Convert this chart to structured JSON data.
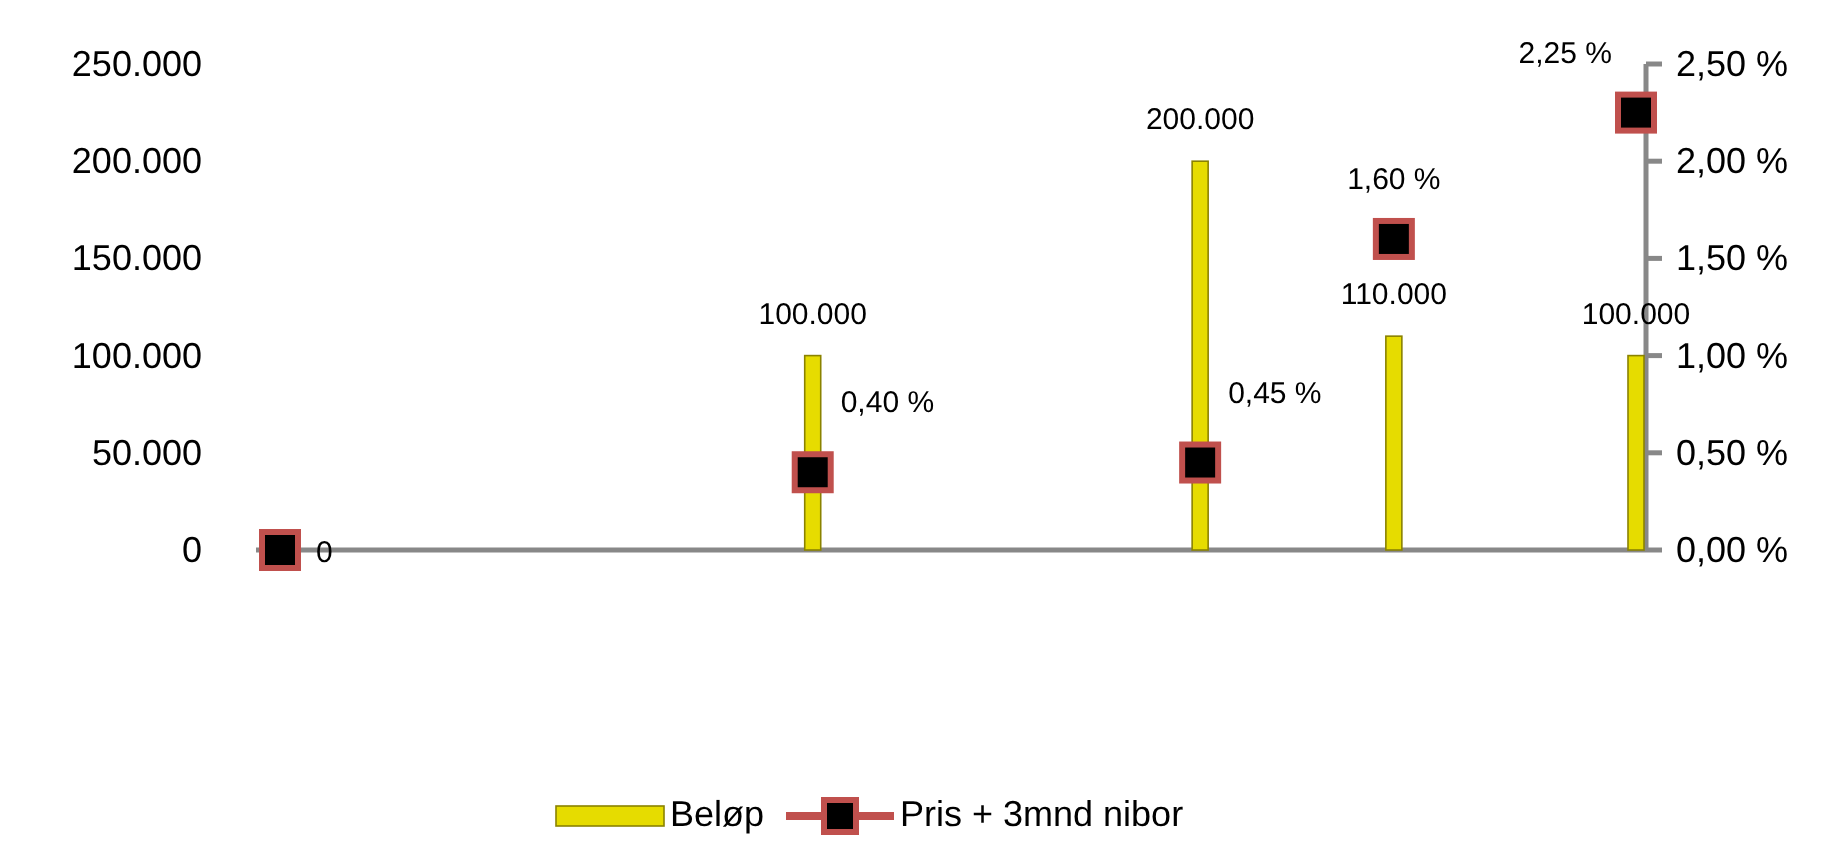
{
  "chart_data": {
    "type": "bar",
    "categories": [
      null,
      null,
      null,
      null,
      null,
      null,
      null,
      null,
      null,
      null,
      null,
      null,
      null,
      null,
      null,
      null,
      null,
      null,
      null,
      null,
      null,
      null,
      null,
      null,
      null,
      null,
      null,
      null,
      null
    ],
    "ylim": [
      0,
      250000
    ],
    "yticks": [
      {
        "value": 0,
        "label": "0"
      },
      {
        "value": 50000,
        "label": "50.000"
      },
      {
        "value": 100000,
        "label": "100.000"
      },
      {
        "value": 150000,
        "label": "150.000"
      },
      {
        "value": 200000,
        "label": "200.000"
      },
      {
        "value": 250000,
        "label": "250.000"
      }
    ],
    "y2lim": [
      0,
      2.5
    ],
    "y2ticks": [
      {
        "value": 0,
        "label": "0,00 %"
      },
      {
        "value": 0.5,
        "label": "0,50 %"
      },
      {
        "value": 1,
        "label": "1,00 %"
      },
      {
        "value": 1.5,
        "label": "1,50 %"
      },
      {
        "value": 2,
        "label": "2,00 %"
      },
      {
        "value": 2.5,
        "label": "2,50 %"
      }
    ],
    "series": [
      {
        "name": "Beløp",
        "color": "#e6dc00",
        "values": [
          null,
          null,
          null,
          null,
          null,
          null,
          null,
          null,
          null,
          null,
          null,
          100000,
          null,
          null,
          null,
          null,
          null,
          null,
          null,
          200000,
          null,
          null,
          null,
          110000,
          null,
          null,
          null,
          null,
          100000
        ],
        "value_labels": [
          null,
          null,
          null,
          null,
          null,
          null,
          null,
          null,
          null,
          null,
          null,
          "100.000",
          null,
          null,
          null,
          null,
          null,
          null,
          null,
          "200.000",
          null,
          null,
          null,
          "110.000",
          null,
          null,
          null,
          null,
          "100.000"
        ]
      },
      {
        "name": "Pris + 3mnd nibor",
        "type": "scatter",
        "axis": "y2",
        "color": "#c0504d",
        "marker": "square",
        "values": [
          0,
          null,
          null,
          null,
          null,
          null,
          null,
          null,
          null,
          null,
          null,
          0.4,
          null,
          null,
          null,
          null,
          null,
          null,
          null,
          0.45,
          null,
          null,
          null,
          1.6,
          null,
          null,
          null,
          null,
          2.25
        ],
        "value_labels": [
          "0",
          null,
          null,
          null,
          null,
          null,
          null,
          null,
          null,
          null,
          null,
          "0,40 %",
          null,
          null,
          null,
          null,
          null,
          null,
          null,
          "0,45 %",
          null,
          null,
          null,
          "1,60 %",
          null,
          null,
          null,
          null,
          "2,25 %"
        ]
      }
    ],
    "legend": "bottom",
    "grid": false
  }
}
